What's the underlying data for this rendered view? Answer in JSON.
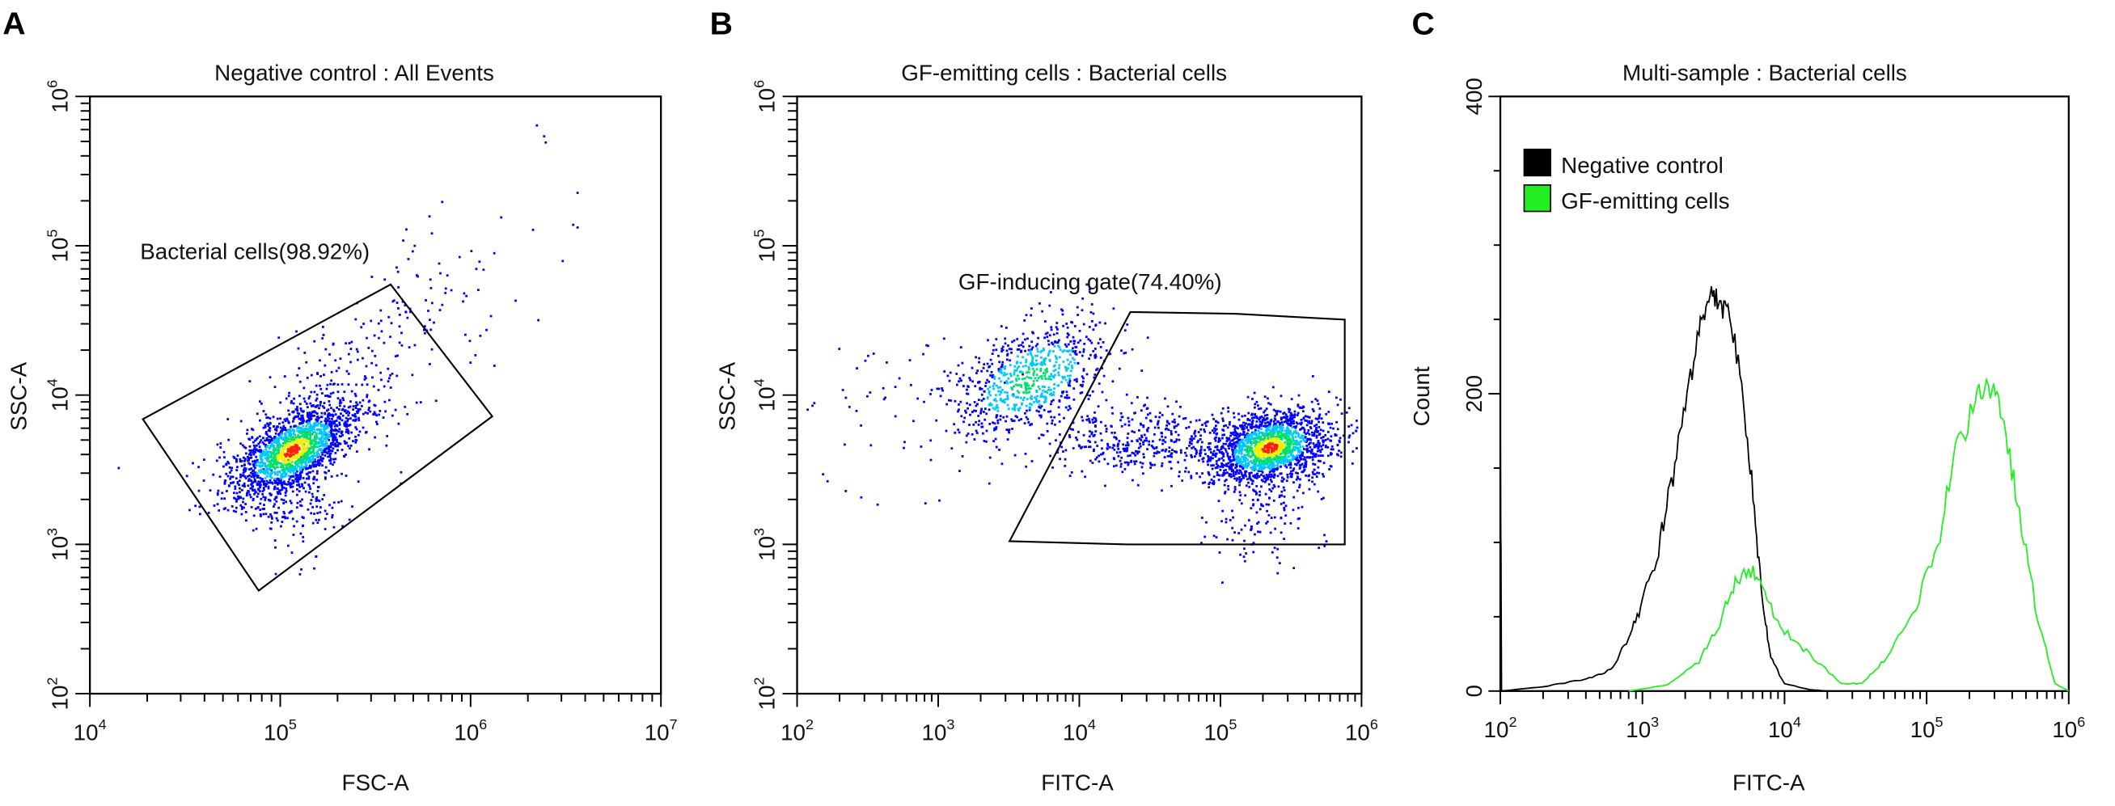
{
  "colors": {
    "axis": "#000000",
    "density_low": "#0000ff",
    "density_mid": "#00c8ff",
    "density_midhigh": "#00e070",
    "density_high": "#f0f000",
    "density_peak": "#ff2000",
    "negative_control": "#000000",
    "gf_emitting": "#22ee22"
  },
  "chart_data": [
    {
      "panel_label": "A",
      "type": "scatter",
      "title": "Negative control : All Events",
      "xlabel": "FSC-A",
      "ylabel": "SSC-A",
      "xscale": "log",
      "yscale": "log",
      "xlim": [
        10000,
        10000000
      ],
      "ylim": [
        100,
        1000000
      ],
      "xticks": [
        {
          "b": "10",
          "e": "4",
          "v": 10000
        },
        {
          "b": "10",
          "e": "5",
          "v": 100000
        },
        {
          "b": "10",
          "e": "6",
          "v": 1000000
        },
        {
          "b": "10",
          "e": "7",
          "v": 10000000
        }
      ],
      "yticks": [
        {
          "b": "10",
          "e": "2",
          "v": 100
        },
        {
          "b": "10",
          "e": "3",
          "v": 1000
        },
        {
          "b": "10",
          "e": "4",
          "v": 10000
        },
        {
          "b": "10",
          "e": "5",
          "v": 100000
        },
        {
          "b": "10",
          "e": "6",
          "v": 1000000
        }
      ],
      "density_coloring": true,
      "gate": {
        "label": "Bacterial cells(98.92%)",
        "vertices": [
          [
            19000,
            6900
          ],
          [
            380000,
            55000
          ],
          [
            1300000,
            7200
          ],
          [
            77000,
            490
          ]
        ]
      },
      "populations": [
        {
          "center": [
            115000,
            4300
          ],
          "spread_decades": [
            0.17,
            0.17
          ],
          "correlation": 0.6,
          "events": 1800,
          "dense": true
        },
        {
          "center": [
            250000,
            15000
          ],
          "spread_decades": [
            0.35,
            0.4
          ],
          "correlation": 0.7,
          "events": 260,
          "dense": false
        },
        {
          "center": [
            120000,
            1800
          ],
          "spread_decades": [
            0.12,
            0.15
          ],
          "correlation": 0.0,
          "events": 120,
          "dense": false
        }
      ],
      "outliers": [
        [
          2400000,
          550000
        ],
        [
          2450000,
          500000
        ],
        [
          2200000,
          650000
        ],
        [
          3600000,
          230000
        ],
        [
          3600000,
          135000
        ],
        [
          2100000,
          130000
        ],
        [
          14000,
          3300
        ],
        [
          700000,
          200000
        ],
        [
          600000,
          160000
        ]
      ]
    },
    {
      "panel_label": "B",
      "type": "scatter",
      "title": "GF-emitting cells : Bacterial cells",
      "xlabel": "FITC-A",
      "ylabel": "SSC-A",
      "xscale": "log",
      "yscale": "log",
      "xlim": [
        100,
        1000000
      ],
      "ylim": [
        100,
        1000000
      ],
      "xticks": [
        {
          "b": "10",
          "e": "2",
          "v": 100
        },
        {
          "b": "10",
          "e": "3",
          "v": 1000
        },
        {
          "b": "10",
          "e": "4",
          "v": 10000
        },
        {
          "b": "10",
          "e": "5",
          "v": 100000
        },
        {
          "b": "10",
          "e": "6",
          "v": 1000000
        }
      ],
      "yticks": [
        {
          "b": "10",
          "e": "2",
          "v": 100
        },
        {
          "b": "10",
          "e": "3",
          "v": 1000
        },
        {
          "b": "10",
          "e": "4",
          "v": 10000
        },
        {
          "b": "10",
          "e": "5",
          "v": 100000
        },
        {
          "b": "10",
          "e": "6",
          "v": 1000000
        }
      ],
      "density_coloring": true,
      "gate": {
        "label": "GF-inducing gate(74.40%)",
        "vertices": [
          [
            3200,
            1050
          ],
          [
            23000,
            36000
          ],
          [
            130000,
            35000
          ],
          [
            760000,
            32000
          ],
          [
            760000,
            1000
          ],
          [
            22000,
            1000
          ]
        ]
      },
      "populations": [
        {
          "center": [
            4500,
            13000
          ],
          "spread_decades": [
            0.28,
            0.2
          ],
          "correlation": 0.5,
          "events": 750,
          "dense": true,
          "max_level": 2
        },
        {
          "center": [
            30000,
            5000
          ],
          "spread_decades": [
            0.35,
            0.12
          ],
          "correlation": 0.0,
          "events": 420,
          "dense": false
        },
        {
          "center": [
            220000,
            4500
          ],
          "spread_decades": [
            0.22,
            0.13
          ],
          "correlation": 0.3,
          "events": 1700,
          "dense": true
        },
        {
          "center": [
            200000,
            1500
          ],
          "spread_decades": [
            0.2,
            0.15
          ],
          "correlation": 0.0,
          "events": 110,
          "dense": false
        },
        {
          "center": [
            600,
            10000
          ],
          "spread_decades": [
            0.4,
            0.25
          ],
          "correlation": 0.0,
          "events": 60,
          "dense": false
        }
      ],
      "outliers": [
        [
          130,
          9000
        ],
        [
          280,
          2100
        ],
        [
          1000,
          2000
        ],
        [
          150,
          3000
        ]
      ]
    },
    {
      "panel_label": "C",
      "type": "line",
      "subtype": "histogram-overlay",
      "title": "Multi-sample : Bacterial cells",
      "xlabel": "FITC-A",
      "ylabel": "Count",
      "xscale": "log",
      "xlim": [
        100,
        1000000
      ],
      "ylim": [
        0,
        400
      ],
      "xticks": [
        {
          "b": "10",
          "e": "2",
          "v": 100
        },
        {
          "b": "10",
          "e": "3",
          "v": 1000
        },
        {
          "b": "10",
          "e": "4",
          "v": 10000
        },
        {
          "b": "10",
          "e": "5",
          "v": 100000
        },
        {
          "b": "10",
          "e": "6",
          "v": 1000000
        }
      ],
      "yticks": [
        {
          "t": "0",
          "v": 0
        },
        {
          "t": "200",
          "v": 200
        },
        {
          "t": "400",
          "v": 400
        }
      ],
      "legend_position": "top-left",
      "series": [
        {
          "name": "Negative control",
          "color": "#000000",
          "points": [
            [
              100,
              180
            ],
            [
              102,
              0
            ],
            [
              200,
              3
            ],
            [
              400,
              8
            ],
            [
              600,
              14
            ],
            [
              800,
              35
            ],
            [
              1000,
              60
            ],
            [
              1300,
              95
            ],
            [
              1600,
              140
            ],
            [
              2000,
              190
            ],
            [
              2500,
              240
            ],
            [
              3000,
              270
            ],
            [
              3500,
              262
            ],
            [
              4000,
              255
            ],
            [
              5000,
              210
            ],
            [
              6000,
              130
            ],
            [
              7000,
              60
            ],
            [
              8000,
              22
            ],
            [
              10000,
              5
            ],
            [
              15000,
              1
            ],
            [
              20000,
              0
            ]
          ]
        },
        {
          "name": "GF-emitting cells",
          "color": "#22ee22",
          "points": [
            [
              800,
              0
            ],
            [
              1500,
              4
            ],
            [
              2500,
              20
            ],
            [
              3500,
              45
            ],
            [
              4500,
              75
            ],
            [
              6000,
              80
            ],
            [
              7500,
              60
            ],
            [
              10000,
              40
            ],
            [
              15000,
              25
            ],
            [
              25000,
              5
            ],
            [
              35000,
              5
            ],
            [
              50000,
              20
            ],
            [
              80000,
              50
            ],
            [
              120000,
              100
            ],
            [
              160000,
              160
            ],
            [
              220000,
              195
            ],
            [
              280000,
              205
            ],
            [
              350000,
              180
            ],
            [
              450000,
              120
            ],
            [
              600000,
              50
            ],
            [
              800000,
              5
            ],
            [
              1000000,
              0
            ]
          ]
        }
      ]
    }
  ]
}
